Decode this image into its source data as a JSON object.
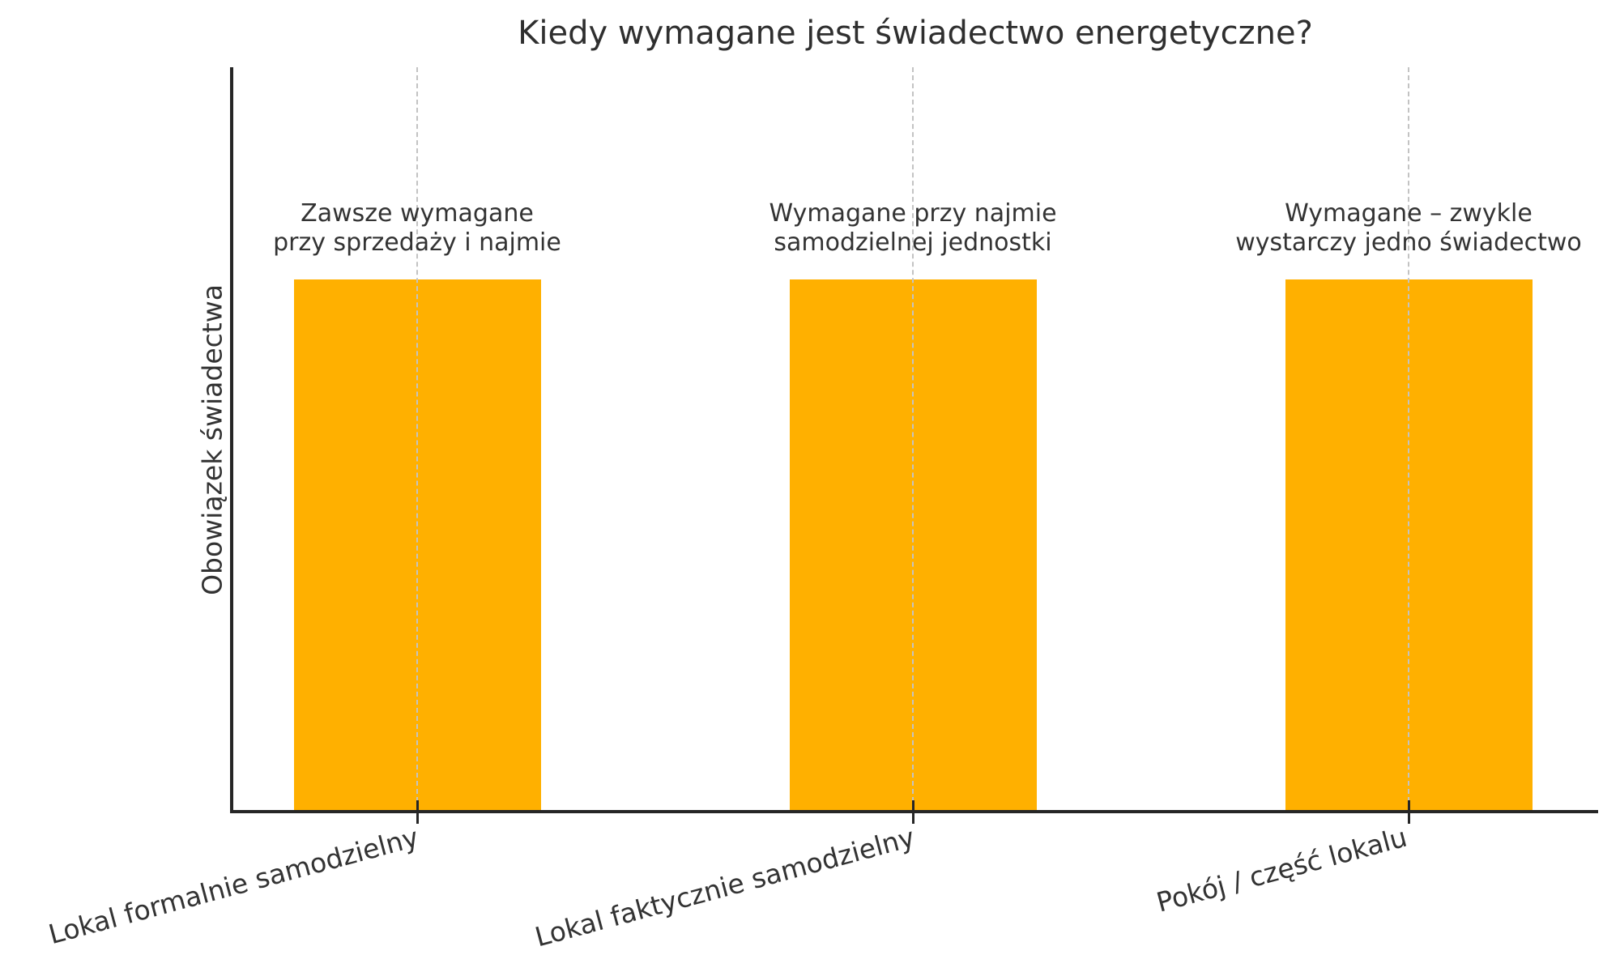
{
  "chart_data": {
    "type": "bar",
    "title": "Kiedy wymagane jest świadectwo energetyczne?",
    "xlabel": "",
    "ylabel": "Obowiązek świadectwa",
    "categories": [
      "Lokal formalnie samodzielny",
      "Lokal faktycznie samodzielny",
      "Pokój / część lokalu"
    ],
    "values": [
      1,
      1,
      1
    ],
    "ylim": [
      0,
      1.4
    ],
    "grid": "vertical dashed line at each bar center",
    "legend": "none",
    "tick_label_rotation_deg": 15,
    "annotations": [
      [
        "Zawsze wymagane",
        "przy sprzedaży i najmie"
      ],
      [
        "Wymagane przy najmie",
        "samodzielnej jednostki"
      ],
      [
        "Wymagane – zwykle",
        "wystarczy jedno świadectwo"
      ]
    ]
  },
  "colors": {
    "bar": "#FFB000",
    "axis": "#262626",
    "gridline": "#C3C3C3",
    "text": "#333333",
    "title": "#2F2F2F",
    "background": "#FFFFFF"
  }
}
